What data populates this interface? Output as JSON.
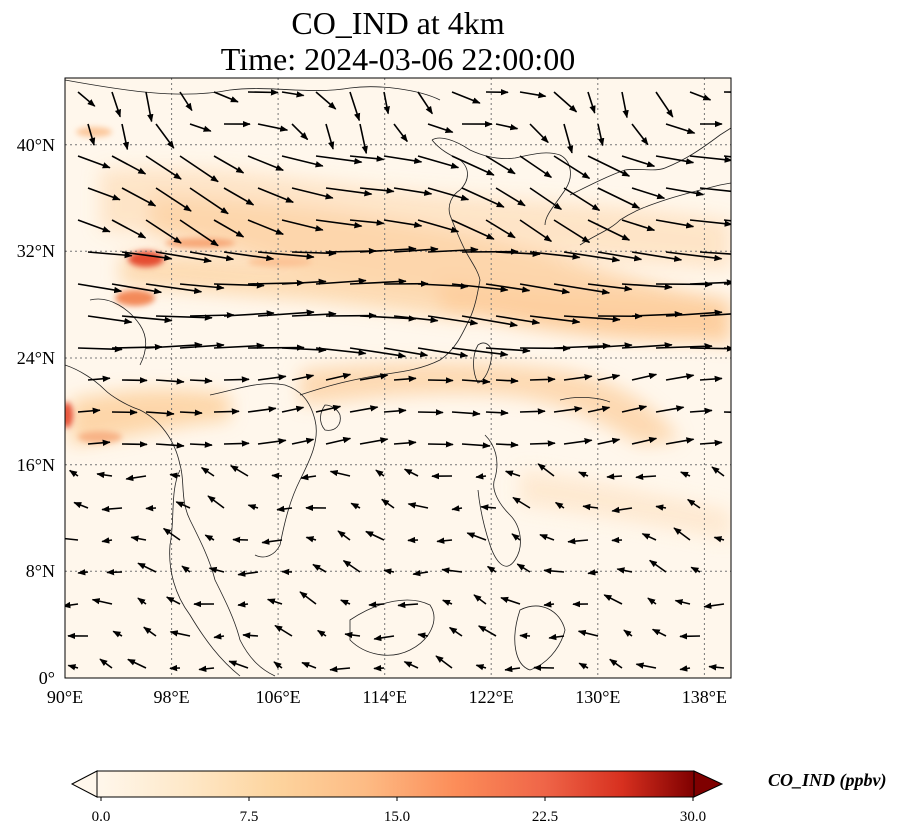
{
  "figure": {
    "title_line1": "CO_IND at 4km",
    "title_line2": "Time: 2024-03-06 22:00:00"
  },
  "map": {
    "lon_range": [
      90,
      140
    ],
    "lat_range": [
      0,
      45
    ],
    "lon_ticks": [
      {
        "value": 90,
        "label": "90°E"
      },
      {
        "value": 98,
        "label": "98°E"
      },
      {
        "value": 106,
        "label": "106°E"
      },
      {
        "value": 114,
        "label": "114°E"
      },
      {
        "value": 122,
        "label": "122°E"
      },
      {
        "value": 130,
        "label": "130°E"
      },
      {
        "value": 138,
        "label": "138°E"
      }
    ],
    "lat_ticks": [
      {
        "value": 0,
        "label": "0°"
      },
      {
        "value": 8,
        "label": "8°N"
      },
      {
        "value": 16,
        "label": "16°N"
      },
      {
        "value": 24,
        "label": "24°N"
      },
      {
        "value": 32,
        "label": "32°N"
      },
      {
        "value": 40,
        "label": "40°N"
      }
    ],
    "gridlines": true,
    "vector_field": "wind arrows"
  },
  "colorbar": {
    "label": "CO_IND (ppbv)",
    "min": 0.0,
    "max": 30.0,
    "colormap": "OrRd",
    "extend": "both",
    "ticks": [
      "0.0",
      "7.5",
      "15.0",
      "22.5",
      "30.0"
    ]
  },
  "colors": {
    "low": "#fff7ec",
    "mid": "#fdbb84",
    "high": "#7f0000"
  }
}
